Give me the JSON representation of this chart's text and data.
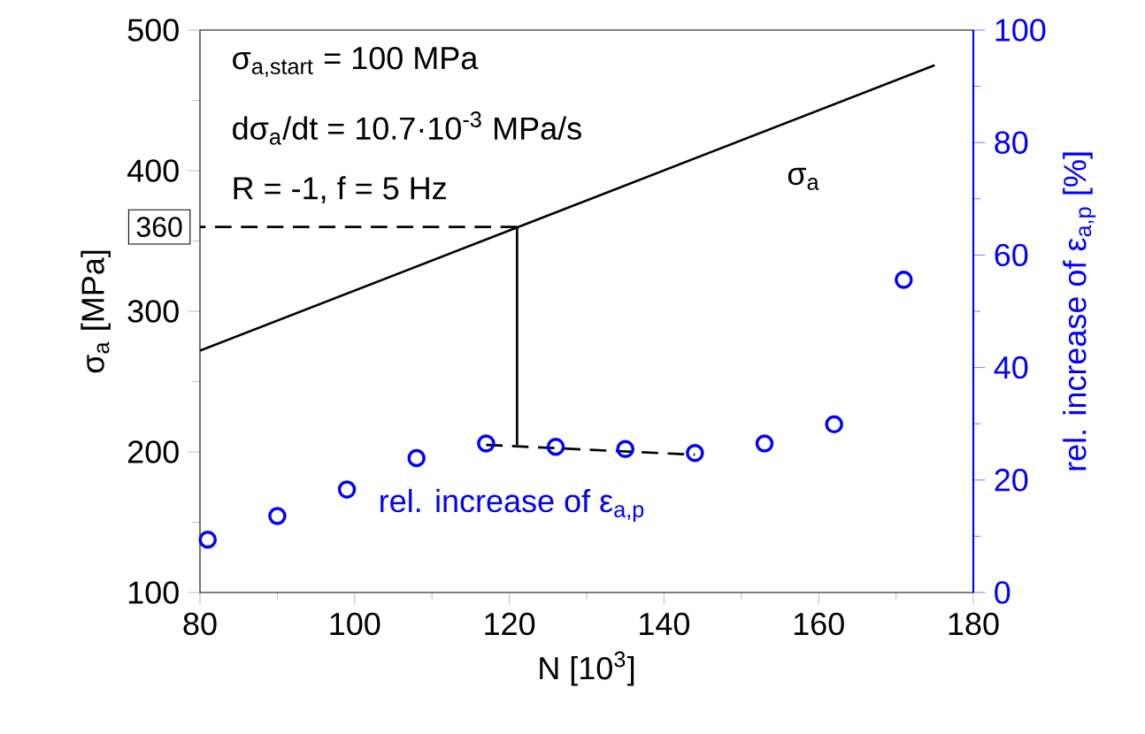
{
  "chart_data": {
    "type": "line",
    "xlabel": "N [10$^{3}$]",
    "ylabel": "σ$_{a}$ [MPa]",
    "y2label": "rel. increase of ε$_{a,p}$ [%]",
    "xlim": [
      80,
      180
    ],
    "xticks": [
      80,
      100,
      120,
      140,
      160,
      180
    ],
    "ylim": [
      100,
      500
    ],
    "yticks": [
      100,
      200,
      300,
      400,
      500
    ],
    "y2lim": [
      0,
      100
    ],
    "y2ticks": [
      0,
      20,
      40,
      60,
      80,
      100
    ],
    "grid": false,
    "series": [
      {
        "name": "σ$_{a}$",
        "color": "#000000",
        "line_style": "solid",
        "x": [
          80,
          175
        ],
        "values": [
          272,
          475
        ]
      },
      {
        "name": "rel. increase of ε$_{a,p}$",
        "type": "scatter",
        "axis": "y2",
        "color": "#0000ff",
        "marker": "circle",
        "x": [
          81,
          90,
          99,
          108,
          117,
          126,
          135,
          144,
          153,
          162,
          171
        ],
        "values": [
          9.4,
          13.6,
          18.3,
          23.9,
          26.5,
          25.9,
          25.5,
          24.8,
          26.5,
          29.9,
          55.6
        ]
      },
      {
        "color": "#000000",
        "line_style": "dashed",
        "x": [
          121,
          80
        ],
        "values": [
          360,
          360
        ]
      },
      {
        "color": "#000000",
        "line_style": "solid",
        "x": [
          121,
          121
        ],
        "values": [
          360,
          205
        ]
      },
      {
        "color": "#000000",
        "line_style": "dashed",
        "x": [
          117,
          144
        ],
        "values": [
          205,
          198
        ]
      }
    ],
    "annotations": [
      "σ$_{a,start}$ = 100 MPa",
      "dσ$_{a}$/dt = 10.7·10$^{-3}$ MPa/s",
      "R = -1, f = 5 Hz",
      {
        "text": "360",
        "x": 80,
        "y": 360
      }
    ]
  }
}
